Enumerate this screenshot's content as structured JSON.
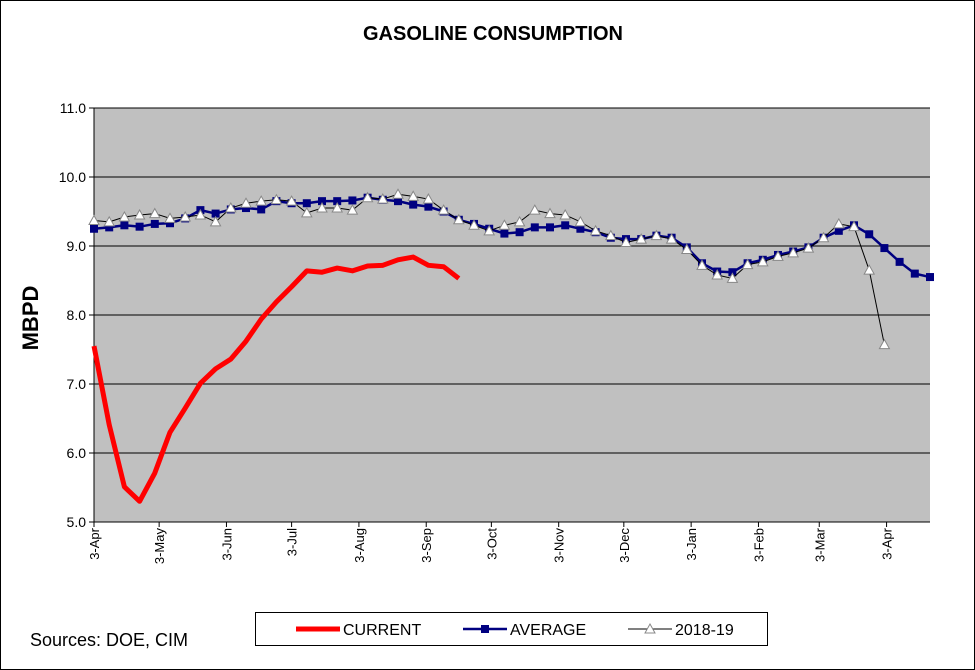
{
  "chart_data": {
    "type": "line",
    "title": "GASOLINE CONSUMPTION",
    "y_label": "MBPD",
    "annotation": "Sources:  DOE, CIM",
    "x": [
      0,
      7,
      14,
      21,
      28,
      35,
      42,
      49,
      56,
      63,
      70,
      77,
      84,
      91,
      98,
      105,
      112,
      119,
      126,
      133,
      140,
      147,
      154,
      161,
      168,
      175,
      182,
      189,
      196,
      203,
      210,
      217,
      224,
      231,
      238,
      245,
      252,
      259,
      266,
      273,
      280,
      287,
      294,
      301,
      308,
      315,
      322,
      329,
      336,
      343,
      350,
      357,
      364,
      371,
      378,
      385
    ],
    "xlim": [
      0,
      385
    ],
    "xticks": [
      {
        "value": 0,
        "label": "3-Apr"
      },
      {
        "value": 30,
        "label": "3-May"
      },
      {
        "value": 61,
        "label": "3-Jun"
      },
      {
        "value": 91,
        "label": "3-Jul"
      },
      {
        "value": 122,
        "label": "3-Aug"
      },
      {
        "value": 153,
        "label": "3-Sep"
      },
      {
        "value": 183,
        "label": "3-Oct"
      },
      {
        "value": 214,
        "label": "3-Nov"
      },
      {
        "value": 244,
        "label": "3-Dec"
      },
      {
        "value": 275,
        "label": "3-Jan"
      },
      {
        "value": 306,
        "label": "3-Feb"
      },
      {
        "value": 334,
        "label": "3-Mar"
      },
      {
        "value": 365,
        "label": "3-Apr"
      }
    ],
    "ylim": [
      5,
      11
    ],
    "yticks": [
      {
        "value": 5,
        "label": "5.0"
      },
      {
        "value": 6,
        "label": "6.0"
      },
      {
        "value": 7,
        "label": "7.0"
      },
      {
        "value": 8,
        "label": "8.0"
      },
      {
        "value": 9,
        "label": "9.0"
      },
      {
        "value": 10,
        "label": "10.0"
      },
      {
        "value": 11,
        "label": "11.0"
      }
    ],
    "grid": true,
    "legend": "bottom",
    "series": [
      {
        "name": "CURRENT",
        "color": "#ff0000",
        "marker": "none",
        "values": [
          7.55,
          6.41,
          5.51,
          5.3,
          5.71,
          6.3,
          6.65,
          7.01,
          7.22,
          7.36,
          7.62,
          7.94,
          8.19,
          8.41,
          8.64,
          8.62,
          8.68,
          8.64,
          8.71,
          8.72,
          8.8,
          8.84,
          8.72,
          8.7,
          8.53,
          null,
          null,
          null,
          null,
          null,
          null,
          null,
          null,
          null,
          null,
          null,
          null,
          null,
          null,
          null,
          null,
          null,
          null,
          null,
          null,
          null,
          null,
          null,
          null,
          null,
          null,
          null,
          null,
          null,
          null,
          null
        ]
      },
      {
        "name": "AVERAGE",
        "color": "#000080",
        "marker": "square",
        "values": [
          9.25,
          9.27,
          9.3,
          9.28,
          9.32,
          9.33,
          9.4,
          9.52,
          9.47,
          9.53,
          9.55,
          9.53,
          9.65,
          9.62,
          9.62,
          9.65,
          9.65,
          9.66,
          9.7,
          9.67,
          9.65,
          9.6,
          9.57,
          9.5,
          9.38,
          9.32,
          9.25,
          9.18,
          9.2,
          9.27,
          9.27,
          9.3,
          9.25,
          9.2,
          9.12,
          9.1,
          9.1,
          9.15,
          9.12,
          8.98,
          8.75,
          8.63,
          8.62,
          8.75,
          8.8,
          8.87,
          8.92,
          8.98,
          9.12,
          9.22,
          9.3,
          9.17,
          8.97,
          8.77,
          8.6,
          8.55
        ]
      },
      {
        "name": "2018-19",
        "color": "#000000",
        "marker": "triangle",
        "values": [
          9.37,
          9.35,
          9.42,
          9.45,
          9.47,
          9.4,
          9.42,
          9.45,
          9.35,
          9.55,
          9.62,
          9.65,
          9.67,
          9.65,
          9.48,
          9.55,
          9.55,
          9.52,
          9.7,
          9.68,
          9.75,
          9.72,
          9.68,
          9.52,
          9.38,
          9.3,
          9.22,
          9.3,
          9.35,
          9.52,
          9.47,
          9.45,
          9.35,
          9.22,
          9.15,
          9.05,
          9.1,
          9.15,
          9.1,
          8.95,
          8.72,
          8.58,
          8.53,
          8.73,
          8.77,
          8.85,
          8.9,
          8.97,
          9.12,
          9.32,
          9.28,
          8.65,
          7.57,
          null,
          null,
          null
        ]
      }
    ]
  }
}
